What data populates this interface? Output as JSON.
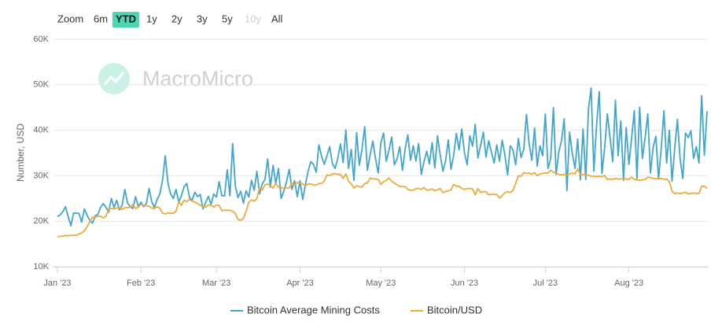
{
  "range_selector": {
    "label": "Zoom",
    "buttons": [
      "6m",
      "YTD",
      "1y",
      "2y",
      "3y",
      "5y",
      "10y",
      "All"
    ],
    "selected": 1,
    "disabled": [
      6
    ]
  },
  "watermark": "MacroMicro",
  "chart_data": {
    "type": "line",
    "y_label": "Number, USD",
    "ylim": [
      10000,
      60000
    ],
    "yticks": [
      {
        "value": 10000,
        "label": "10K"
      },
      {
        "value": 20000,
        "label": "20K"
      },
      {
        "value": 30000,
        "label": "30K"
      },
      {
        "value": 40000,
        "label": "40K"
      },
      {
        "value": 50000,
        "label": "50K"
      },
      {
        "value": 60000,
        "label": "60K"
      }
    ],
    "grid": true,
    "legend": "bottom",
    "categories": [
      "Jan '23",
      null,
      null,
      null,
      null,
      null,
      null,
      null,
      null,
      null,
      null,
      null,
      null,
      null,
      null,
      null,
      null,
      null,
      null,
      null,
      null,
      null,
      null,
      null,
      null,
      null,
      null,
      null,
      null,
      null,
      null,
      "Feb '23",
      null,
      null,
      null,
      null,
      null,
      null,
      null,
      null,
      null,
      null,
      null,
      null,
      null,
      null,
      null,
      null,
      null,
      null,
      null,
      null,
      null,
      null,
      null,
      null,
      null,
      null,
      null,
      "Mar '23",
      null,
      null,
      null,
      null,
      null,
      null,
      null,
      null,
      null,
      null,
      null,
      null,
      null,
      null,
      null,
      null,
      null,
      null,
      null,
      null,
      null,
      null,
      null,
      null,
      null,
      null,
      null,
      null,
      null,
      null,
      "Apr '23",
      null,
      null,
      null,
      null,
      null,
      null,
      null,
      null,
      null,
      null,
      null,
      null,
      null,
      null,
      null,
      null,
      null,
      null,
      null,
      null,
      null,
      null,
      null,
      null,
      null,
      null,
      null,
      null,
      null,
      "May '23",
      null,
      null,
      null,
      null,
      null,
      null,
      null,
      null,
      null,
      null,
      null,
      null,
      null,
      null,
      null,
      null,
      null,
      null,
      null,
      null,
      null,
      null,
      null,
      null,
      null,
      null,
      null,
      null,
      null,
      null,
      "Jun '23",
      null,
      null,
      null,
      null,
      null,
      null,
      null,
      null,
      null,
      null,
      null,
      null,
      null,
      null,
      null,
      null,
      null,
      null,
      null,
      null,
      null,
      null,
      null,
      null,
      null,
      null,
      null,
      null,
      null,
      "Jul '23",
      null,
      null,
      null,
      null,
      null,
      null,
      null,
      null,
      null,
      null,
      null,
      null,
      null,
      null,
      null,
      null,
      null,
      null,
      null,
      null,
      null,
      null,
      null,
      null,
      null,
      null,
      null,
      null,
      null,
      null,
      "Aug '23",
      null,
      null,
      null,
      null,
      null,
      null,
      null,
      null,
      null,
      null,
      null,
      null,
      null,
      null,
      null,
      null,
      null,
      null,
      null,
      null,
      null,
      null,
      null,
      null,
      null,
      null,
      null,
      null,
      null
    ],
    "series": [
      {
        "name": "Bitcoin Average Mining Costs",
        "color": "#3fa6d0",
        "values": [
          21000,
          21400,
          22100,
          23200,
          21000,
          19000,
          21800,
          21800,
          21700,
          19800,
          22700,
          21300,
          20200,
          19600,
          21200,
          21500,
          23000,
          23900,
          23100,
          22000,
          25000,
          23000,
          24600,
          22500,
          23500,
          27000,
          24000,
          23200,
          22800,
          25400,
          23200,
          24200,
          23200,
          23900,
          27200,
          24300,
          23000,
          24800,
          26000,
          29000,
          34400,
          28400,
          26000,
          25000,
          27000,
          24200,
          25600,
          27600,
          28300,
          25200,
          24600,
          26400,
          25400,
          25900,
          22700,
          24100,
          25500,
          23700,
          26000,
          25300,
          28700,
          25600,
          25600,
          31300,
          25600,
          37100,
          27700,
          25200,
          26600,
          24000,
          26700,
          25300,
          29000,
          26800,
          31000,
          26000,
          28200,
          29200,
          33700,
          27500,
          32300,
          28300,
          31600,
          25000,
          26600,
          28700,
          31400,
          27000,
          28900,
          25400,
          28900,
          24800,
          28000,
          31000,
          33100,
          32500,
          30800,
          36800,
          34300,
          32500,
          34400,
          36400,
          32700,
          31600,
          33800,
          37000,
          32900,
          40100,
          31600,
          35800,
          29000,
          39500,
          32300,
          35900,
          40800,
          31200,
          34600,
          37600,
          33800,
          30600,
          37300,
          39400,
          33200,
          35600,
          38500,
          32400,
          33700,
          36400,
          31200,
          35900,
          39000,
          33400,
          36600,
          33200,
          37100,
          30300,
          33100,
          35400,
          32600,
          37300,
          31700,
          38800,
          34600,
          31000,
          33200,
          37900,
          31400,
          34500,
          39300,
          35700,
          40300,
          35100,
          32400,
          38800,
          36500,
          41300,
          33900,
          36700,
          39600,
          34100,
          37700,
          35200,
          32800,
          36800,
          33200,
          37800,
          34600,
          30200,
          36600,
          35700,
          32400,
          38200,
          34000,
          35800,
          43500,
          37000,
          33400,
          40500,
          32100,
          36600,
          34400,
          43600,
          31600,
          33800,
          45000,
          30300,
          35200,
          37700,
          42500,
          26700,
          39600,
          35000,
          31600,
          38100,
          29100,
          40300,
          29200,
          44700,
          49300,
          31000,
          41000,
          48500,
          30500,
          36100,
          43600,
          38400,
          33100,
          46600,
          34400,
          42100,
          29000,
          40600,
          32500,
          38200,
          44300,
          29400,
          45100,
          33800,
          38200,
          43600,
          30600,
          36200,
          38700,
          29400,
          36000,
          44300,
          32800,
          40000,
          28800,
          36000,
          42400,
          33700,
          29400,
          39400,
          38400,
          39900,
          33800,
          36400,
          32800,
          47600,
          34500,
          44200
        ]
      },
      {
        "name": "Bitcoin/USD",
        "color": "#f2a93b",
        "values": [
          16600,
          16700,
          16700,
          16900,
          16800,
          16900,
          16900,
          16900,
          17200,
          17400,
          17900,
          18800,
          19900,
          20900,
          20900,
          21100,
          21100,
          20700,
          21100,
          22700,
          22800,
          22700,
          22900,
          23000,
          22600,
          23000,
          23000,
          23100,
          23700,
          22800,
          23100,
          23700,
          23500,
          23400,
          23300,
          22900,
          22800,
          23200,
          22900,
          21800,
          21600,
          21800,
          21800,
          21700,
          22200,
          24300,
          23500,
          24600,
          24300,
          24800,
          24400,
          24200,
          23900,
          23500,
          23200,
          23100,
          23600,
          23500,
          23100,
          23600,
          23500,
          22300,
          22400,
          22400,
          22400,
          22200,
          21700,
          20400,
          20200,
          20600,
          22200,
          24200,
          24700,
          24400,
          25000,
          27400,
          26900,
          28000,
          28200,
          27800,
          27300,
          28300,
          27500,
          27500,
          27100,
          27300,
          27300,
          28400,
          28000,
          28500,
          28500,
          28200,
          27800,
          28200,
          28200,
          28000,
          27900,
          28300,
          28300,
          28800,
          30200,
          30000,
          30400,
          30500,
          30300,
          30300,
          29400,
          30400,
          28800,
          28200,
          27300,
          27800,
          27600,
          27500,
          28300,
          28400,
          29500,
          29300,
          29300,
          29200,
          28100,
          28700,
          29000,
          29500,
          28800,
          28400,
          28000,
          27700,
          27600,
          27600,
          27000,
          26800,
          26800,
          27200,
          27200,
          27000,
          27400,
          26800,
          26900,
          27100,
          26700,
          26900,
          27200,
          26300,
          26500,
          26700,
          26900,
          28100,
          27700,
          27700,
          27200,
          27000,
          27200,
          27200,
          27100,
          25800,
          27200,
          26300,
          26500,
          26500,
          25800,
          25900,
          25900,
          25900,
          25100,
          25600,
          26300,
          26500,
          26300,
          26800,
          28300,
          30000,
          29900,
          30700,
          30500,
          30600,
          30300,
          30700,
          30000,
          30400,
          30500,
          30600,
          30600,
          31200,
          30800,
          30500,
          30300,
          30200,
          30300,
          30200,
          30400,
          30600,
          30400,
          31500,
          30300,
          30300,
          30200,
          30100,
          29900,
          29900,
          29800,
          29900,
          29800,
          30100,
          29200,
          29300,
          29200,
          29400,
          29300,
          29300,
          29300,
          29300,
          29200,
          29700,
          29200,
          29100,
          29000,
          29100,
          29200,
          29700,
          29600,
          29400,
          29400,
          29300,
          29400,
          29200,
          29300,
          28700,
          26600,
          26100,
          26200,
          26100,
          26200,
          26400,
          26000,
          26100,
          26200,
          26100,
          26100,
          27700,
          27700,
          27200
        ]
      }
    ]
  }
}
